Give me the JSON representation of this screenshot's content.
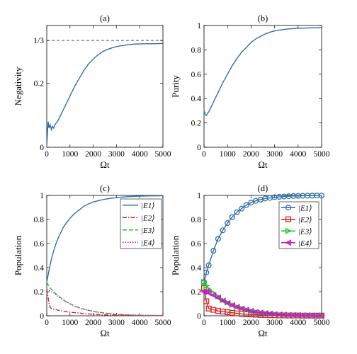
{
  "chart_data": [
    {
      "type": "line",
      "title": "(a)",
      "xlabel": "Ωt",
      "ylabel": "Negativity",
      "xlim": [
        0,
        5000
      ],
      "ylim": [
        0,
        0.38
      ],
      "xticks": [
        0,
        1000,
        2000,
        3000,
        4000,
        5000
      ],
      "yticks": [
        {
          "value": 0,
          "label": "0"
        },
        {
          "value": 0.2,
          "label": "0.2"
        },
        {
          "value": 0.3333,
          "label": "1/3"
        }
      ],
      "grid": false,
      "reference_line": {
        "y": 0.3333,
        "style": "dashed",
        "color": "#555555"
      },
      "series": [
        {
          "color": "#2f6fa8",
          "x": [
            0,
            30,
            60,
            100,
            150,
            200,
            250,
            300,
            350,
            400,
            500,
            600,
            700,
            800,
            900,
            1000,
            1200,
            1400,
            1600,
            1800,
            2000,
            2200,
            2400,
            2600,
            2800,
            3000,
            3200,
            3500,
            3800,
            4200,
            4600,
            5000
          ],
          "y": [
            0.0,
            0.045,
            0.08,
            0.06,
            0.07,
            0.055,
            0.065,
            0.06,
            0.07,
            0.075,
            0.085,
            0.1,
            0.115,
            0.13,
            0.145,
            0.16,
            0.19,
            0.215,
            0.24,
            0.26,
            0.275,
            0.288,
            0.298,
            0.305,
            0.31,
            0.314,
            0.317,
            0.32,
            0.322,
            0.323,
            0.323,
            0.324
          ]
        }
      ]
    },
    {
      "type": "line",
      "title": "(b)",
      "xlabel": "Ωt",
      "ylabel": "Purity",
      "xlim": [
        0,
        5000
      ],
      "ylim": [
        0,
        1
      ],
      "xticks": [
        0,
        1000,
        2000,
        3000,
        4000,
        5000
      ],
      "yticks": [
        {
          "value": 0,
          "label": "0"
        },
        {
          "value": 0.2,
          "label": "0.2"
        },
        {
          "value": 0.4,
          "label": "0.4"
        },
        {
          "value": 0.6,
          "label": "0.6"
        },
        {
          "value": 0.8,
          "label": "0.8"
        },
        {
          "value": 1,
          "label": "1"
        }
      ],
      "grid": false,
      "series": [
        {
          "color": "#2f6fa8",
          "x": [
            0,
            50,
            100,
            150,
            200,
            300,
            400,
            500,
            600,
            800,
            1000,
            1200,
            1400,
            1600,
            1800,
            2000,
            2200,
            2400,
            2600,
            2800,
            3000,
            3300,
            3600,
            4000,
            4500,
            5000
          ],
          "y": [
            0.3,
            0.27,
            0.26,
            0.28,
            0.29,
            0.33,
            0.37,
            0.41,
            0.45,
            0.53,
            0.6,
            0.67,
            0.73,
            0.78,
            0.82,
            0.86,
            0.89,
            0.91,
            0.93,
            0.945,
            0.955,
            0.965,
            0.972,
            0.977,
            0.98,
            0.982
          ]
        }
      ]
    },
    {
      "type": "line",
      "title": "(c)",
      "xlabel": "Ωt",
      "ylabel": "Population",
      "xlim": [
        0,
        5000
      ],
      "ylim": [
        0,
        1
      ],
      "xticks": [
        0,
        1000,
        2000,
        3000,
        4000,
        5000
      ],
      "yticks": [
        {
          "value": 0,
          "label": "0"
        },
        {
          "value": 0.2,
          "label": "0.2"
        },
        {
          "value": 0.4,
          "label": "0.4"
        },
        {
          "value": 0.6,
          "label": "0.6"
        },
        {
          "value": 0.8,
          "label": "0.8"
        },
        {
          "value": 1,
          "label": "1"
        }
      ],
      "grid": false,
      "legend_position": "top-right",
      "series": [
        {
          "name": "|E1⟩",
          "color": "#2f6fa8",
          "dash": "",
          "x": [
            0,
            100,
            200,
            300,
            400,
            500,
            600,
            700,
            800,
            1000,
            1200,
            1400,
            1600,
            1800,
            2000,
            2300,
            2600,
            3000,
            3500,
            4000,
            4500,
            5000
          ],
          "y": [
            0.28,
            0.38,
            0.47,
            0.54,
            0.6,
            0.65,
            0.69,
            0.73,
            0.76,
            0.81,
            0.85,
            0.88,
            0.91,
            0.93,
            0.945,
            0.96,
            0.972,
            0.982,
            0.99,
            0.994,
            0.996,
            0.997
          ]
        },
        {
          "name": "|E2⟩",
          "color": "#d62020",
          "dash": "6,2,1.5,2",
          "x": [
            0,
            60,
            100,
            150,
            200,
            300,
            400,
            600,
            800,
            1000,
            1500,
            2000,
            2500,
            3000,
            4000,
            5000
          ],
          "y": [
            0.22,
            0.15,
            0.1,
            0.07,
            0.06,
            0.055,
            0.05,
            0.042,
            0.035,
            0.03,
            0.02,
            0.012,
            0.007,
            0.004,
            0.002,
            0.001
          ]
        },
        {
          "name": "|E3⟩",
          "color": "#22c422",
          "dash": "6,3",
          "x": [
            0,
            100,
            200,
            300,
            400,
            600,
            800,
            1000,
            1200,
            1500,
            1800,
            2100,
            2500,
            3000,
            3500,
            4000,
            5000
          ],
          "y": [
            0.28,
            0.24,
            0.22,
            0.2,
            0.18,
            0.15,
            0.12,
            0.1,
            0.08,
            0.06,
            0.045,
            0.033,
            0.022,
            0.012,
            0.007,
            0.004,
            0.002
          ]
        },
        {
          "name": "|E4⟩",
          "color": "#c020c0",
          "dash": "1.5,2",
          "x": [
            0,
            100,
            200,
            300,
            400,
            600,
            800,
            1000,
            1200,
            1500,
            1800,
            2100,
            2500,
            3000,
            3500,
            4000,
            5000
          ],
          "y": [
            0.22,
            0.21,
            0.2,
            0.19,
            0.175,
            0.145,
            0.12,
            0.1,
            0.08,
            0.06,
            0.045,
            0.033,
            0.022,
            0.012,
            0.007,
            0.004,
            0.002
          ]
        }
      ]
    },
    {
      "type": "line",
      "title": "(d)",
      "xlabel": "Ωt",
      "ylabel": "Population",
      "xlim": [
        0,
        5000
      ],
      "ylim": [
        0,
        1
      ],
      "xticks": [
        0,
        1000,
        2000,
        3000,
        4000,
        5000
      ],
      "yticks": [
        {
          "value": 0,
          "label": "0"
        },
        {
          "value": 0.2,
          "label": "0.2"
        },
        {
          "value": 0.4,
          "label": "0.4"
        },
        {
          "value": 0.6,
          "label": "0.6"
        },
        {
          "value": 0.8,
          "label": "0.8"
        },
        {
          "value": 1,
          "label": "1"
        }
      ],
      "grid": false,
      "legend_position": "top-right",
      "series": [
        {
          "name": "|E1⟩",
          "color": "#2f6fa8",
          "marker": "circle",
          "x": [
            0,
            100,
            200,
            400,
            600,
            800,
            1000,
            1200,
            1400,
            1600,
            1800,
            2000,
            2200,
            2400,
            2600,
            2800,
            3000,
            3200,
            3400,
            3600,
            3800,
            4000,
            4200,
            4400,
            4600,
            4800,
            5000
          ],
          "y": [
            0.28,
            0.36,
            0.42,
            0.54,
            0.64,
            0.71,
            0.77,
            0.82,
            0.86,
            0.89,
            0.92,
            0.94,
            0.955,
            0.965,
            0.974,
            0.98,
            0.985,
            0.988,
            0.991,
            0.993,
            0.995,
            0.996,
            0.997,
            0.998,
            0.998,
            0.999,
            0.999
          ]
        },
        {
          "name": "|E2⟩",
          "color": "#d62020",
          "marker": "square",
          "x": [
            0,
            100,
            200,
            400,
            600,
            800,
            1000,
            1200,
            1400,
            1600,
            1800,
            2000,
            2200,
            2400,
            2600,
            2800,
            3000,
            3200,
            3400,
            3600,
            3800,
            4000,
            4200,
            4400,
            4600,
            4800,
            5000
          ],
          "y": [
            0.23,
            0.12,
            0.06,
            0.05,
            0.04,
            0.035,
            0.03,
            0.025,
            0.02,
            0.016,
            0.013,
            0.011,
            0.009,
            0.007,
            0.006,
            0.005,
            0.004,
            0.003,
            0.003,
            0.002,
            0.002,
            0.002,
            0.001,
            0.001,
            0.001,
            0.001,
            0.001
          ]
        },
        {
          "name": "|E3⟩",
          "color": "#22c422",
          "marker": "triangle-right",
          "x": [
            0,
            100,
            200,
            400,
            600,
            800,
            1000,
            1200,
            1400,
            1600,
            1800,
            2000,
            2200,
            2400,
            2600,
            2800,
            3000,
            3200,
            3400,
            3600,
            3800,
            4000,
            4200,
            4400,
            4600,
            4800,
            5000
          ],
          "y": [
            0.28,
            0.25,
            0.22,
            0.19,
            0.16,
            0.13,
            0.11,
            0.09,
            0.075,
            0.062,
            0.05,
            0.04,
            0.032,
            0.026,
            0.021,
            0.017,
            0.013,
            0.01,
            0.008,
            0.006,
            0.005,
            0.004,
            0.003,
            0.002,
            0.002,
            0.001,
            0.001
          ]
        },
        {
          "name": "|E4⟩",
          "color": "#c020c0",
          "marker": "triangle-left",
          "x": [
            0,
            100,
            200,
            400,
            600,
            800,
            1000,
            1200,
            1400,
            1600,
            1800,
            2000,
            2200,
            2400,
            2600,
            2800,
            3000,
            3200,
            3400,
            3600,
            3800,
            4000,
            4200,
            4400,
            4600,
            4800,
            5000
          ],
          "y": [
            0.2,
            0.2,
            0.19,
            0.17,
            0.15,
            0.125,
            0.105,
            0.087,
            0.072,
            0.06,
            0.049,
            0.04,
            0.032,
            0.026,
            0.021,
            0.017,
            0.013,
            0.01,
            0.008,
            0.006,
            0.005,
            0.004,
            0.003,
            0.002,
            0.002,
            0.001,
            0.001
          ]
        }
      ]
    }
  ]
}
